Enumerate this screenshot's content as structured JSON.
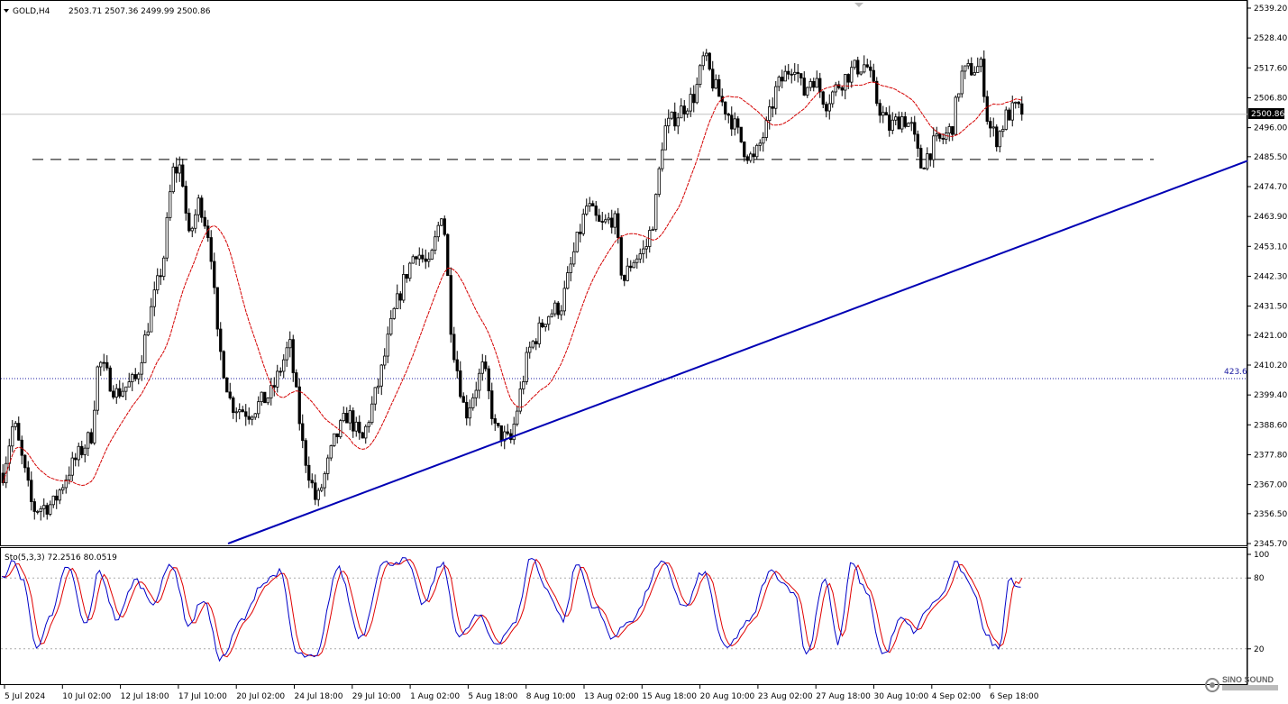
{
  "chart_header": {
    "symbol": "GOLD,H4",
    "ohlc": "2503.71 2507.36 2499.99 2500.86",
    "osc_label": "Sto(5,3,3) 72.2516 80.0519"
  },
  "current_price_label": "2500.86",
  "level_label": "423.6",
  "watermark": "SINO SOUND",
  "colors": {
    "candle": "#000000",
    "ma": "#d40000",
    "trendline": "#0000b4",
    "stoch_main": "#0000c8",
    "stoch_signal": "#e00000",
    "level_line": "#1a1aa0"
  },
  "chart_data": {
    "type": "candlestick",
    "price_axis": {
      "ticks": [
        "2539.20",
        "2528.40",
        "2517.60",
        "2506.80",
        "2496.00",
        "2485.50",
        "2474.70",
        "2463.90",
        "2453.10",
        "2442.30",
        "2431.50",
        "2421.00",
        "2410.20",
        "2399.40",
        "2388.60",
        "2377.80",
        "2367.00",
        "2356.50",
        "2345.70"
      ],
      "ylim": [
        2345.7,
        2539.2
      ]
    },
    "time_axis": {
      "labels": [
        "5 Jul 2024",
        "10 Jul 02:00",
        "12 Jul 18:00",
        "17 Jul 10:00",
        "20 Jul 02:00",
        "24 Jul 18:00",
        "29 Jul 10:00",
        "1 Aug 02:00",
        "5 Aug 18:00",
        "8 Aug 10:00",
        "13 Aug 02:00",
        "15 Aug 18:00",
        "20 Aug 10:00",
        "23 Aug 02:00",
        "27 Aug 18:00",
        "30 Aug 10:00",
        "4 Sep 02:00",
        "6 Sep 18:00"
      ]
    },
    "current_price": 2500.86,
    "resistance": 2484.5,
    "level_price": 2405.3,
    "trendline": {
      "from_price": 2345.7,
      "to_price": 2484.0
    },
    "stochastic": {
      "k": 72.2516,
      "d": 80.0519,
      "levels": [
        "80",
        "20"
      ],
      "range_labels": [
        "100",
        "80",
        "20"
      ]
    },
    "anchors": [
      [
        0,
        2368
      ],
      [
        14,
        2390
      ],
      [
        35,
        2358
      ],
      [
        58,
        2360
      ],
      [
        75,
        2372
      ],
      [
        100,
        2385
      ],
      [
        108,
        2412
      ],
      [
        128,
        2400
      ],
      [
        150,
        2405
      ],
      [
        165,
        2428
      ],
      [
        180,
        2448
      ],
      [
        190,
        2480
      ],
      [
        200,
        2482
      ],
      [
        208,
        2455
      ],
      [
        220,
        2470
      ],
      [
        232,
        2455
      ],
      [
        240,
        2420
      ],
      [
        255,
        2396
      ],
      [
        275,
        2393
      ],
      [
        300,
        2400
      ],
      [
        320,
        2418
      ],
      [
        335,
        2380
      ],
      [
        350,
        2360
      ],
      [
        370,
        2383
      ],
      [
        385,
        2393
      ],
      [
        400,
        2382
      ],
      [
        420,
        2405
      ],
      [
        435,
        2428
      ],
      [
        448,
        2442
      ],
      [
        460,
        2452
      ],
      [
        475,
        2445
      ],
      [
        490,
        2468
      ],
      [
        500,
        2420
      ],
      [
        515,
        2392
      ],
      [
        535,
        2410
      ],
      [
        548,
        2387
      ],
      [
        565,
        2382
      ],
      [
        585,
        2415
      ],
      [
        605,
        2428
      ],
      [
        622,
        2432
      ],
      [
        635,
        2450
      ],
      [
        650,
        2468
      ],
      [
        665,
        2460
      ],
      [
        680,
        2464
      ],
      [
        690,
        2440
      ],
      [
        700,
        2448
      ],
      [
        715,
        2452
      ],
      [
        725,
        2465
      ],
      [
        735,
        2495
      ],
      [
        748,
        2500
      ],
      [
        770,
        2508
      ],
      [
        780,
        2522
      ],
      [
        790,
        2512
      ],
      [
        800,
        2505
      ],
      [
        812,
        2498
      ],
      [
        825,
        2488
      ],
      [
        835,
        2484
      ],
      [
        850,
        2497
      ],
      [
        860,
        2510
      ],
      [
        870,
        2515
      ],
      [
        880,
        2520
      ],
      [
        890,
        2508
      ],
      [
        900,
        2515
      ],
      [
        915,
        2505
      ],
      [
        930,
        2512
      ],
      [
        945,
        2517
      ],
      [
        960,
        2519
      ],
      [
        972,
        2505
      ],
      [
        985,
        2496
      ],
      [
        1000,
        2500
      ],
      [
        1010,
        2496
      ],
      [
        1020,
        2482
      ],
      [
        1035,
        2490
      ],
      [
        1045,
        2492
      ],
      [
        1055,
        2496
      ],
      [
        1065,
        2515
      ],
      [
        1075,
        2517
      ],
      [
        1088,
        2518
      ],
      [
        1095,
        2497
      ],
      [
        1105,
        2492
      ],
      [
        1115,
        2500
      ],
      [
        1125,
        2503
      ],
      [
        1133,
        2501
      ]
    ],
    "stoch_anchors": [
      [
        0,
        78
      ],
      [
        14,
        93
      ],
      [
        25,
        80
      ],
      [
        40,
        22
      ],
      [
        55,
        45
      ],
      [
        75,
        90
      ],
      [
        95,
        40
      ],
      [
        110,
        85
      ],
      [
        130,
        45
      ],
      [
        150,
        78
      ],
      [
        170,
        60
      ],
      [
        190,
        92
      ],
      [
        210,
        40
      ],
      [
        225,
        62
      ],
      [
        245,
        12
      ],
      [
        270,
        45
      ],
      [
        290,
        75
      ],
      [
        310,
        85
      ],
      [
        330,
        15
      ],
      [
        350,
        12
      ],
      [
        375,
        88
      ],
      [
        400,
        30
      ],
      [
        425,
        92
      ],
      [
        450,
        95
      ],
      [
        470,
        58
      ],
      [
        490,
        92
      ],
      [
        510,
        30
      ],
      [
        530,
        48
      ],
      [
        550,
        25
      ],
      [
        570,
        40
      ],
      [
        590,
        98
      ],
      [
        605,
        72
      ],
      [
        625,
        45
      ],
      [
        640,
        92
      ],
      [
        660,
        55
      ],
      [
        680,
        30
      ],
      [
        700,
        45
      ],
      [
        735,
        92
      ],
      [
        760,
        55
      ],
      [
        780,
        85
      ],
      [
        805,
        20
      ],
      [
        830,
        42
      ],
      [
        855,
        85
      ],
      [
        880,
        70
      ],
      [
        895,
        15
      ],
      [
        915,
        80
      ],
      [
        930,
        25
      ],
      [
        945,
        92
      ],
      [
        960,
        70
      ],
      [
        980,
        15
      ],
      [
        1000,
        45
      ],
      [
        1015,
        35
      ],
      [
        1030,
        55
      ],
      [
        1045,
        65
      ],
      [
        1060,
        92
      ],
      [
        1080,
        70
      ],
      [
        1095,
        30
      ],
      [
        1108,
        20
      ],
      [
        1120,
        80
      ],
      [
        1132,
        72
      ]
    ]
  }
}
